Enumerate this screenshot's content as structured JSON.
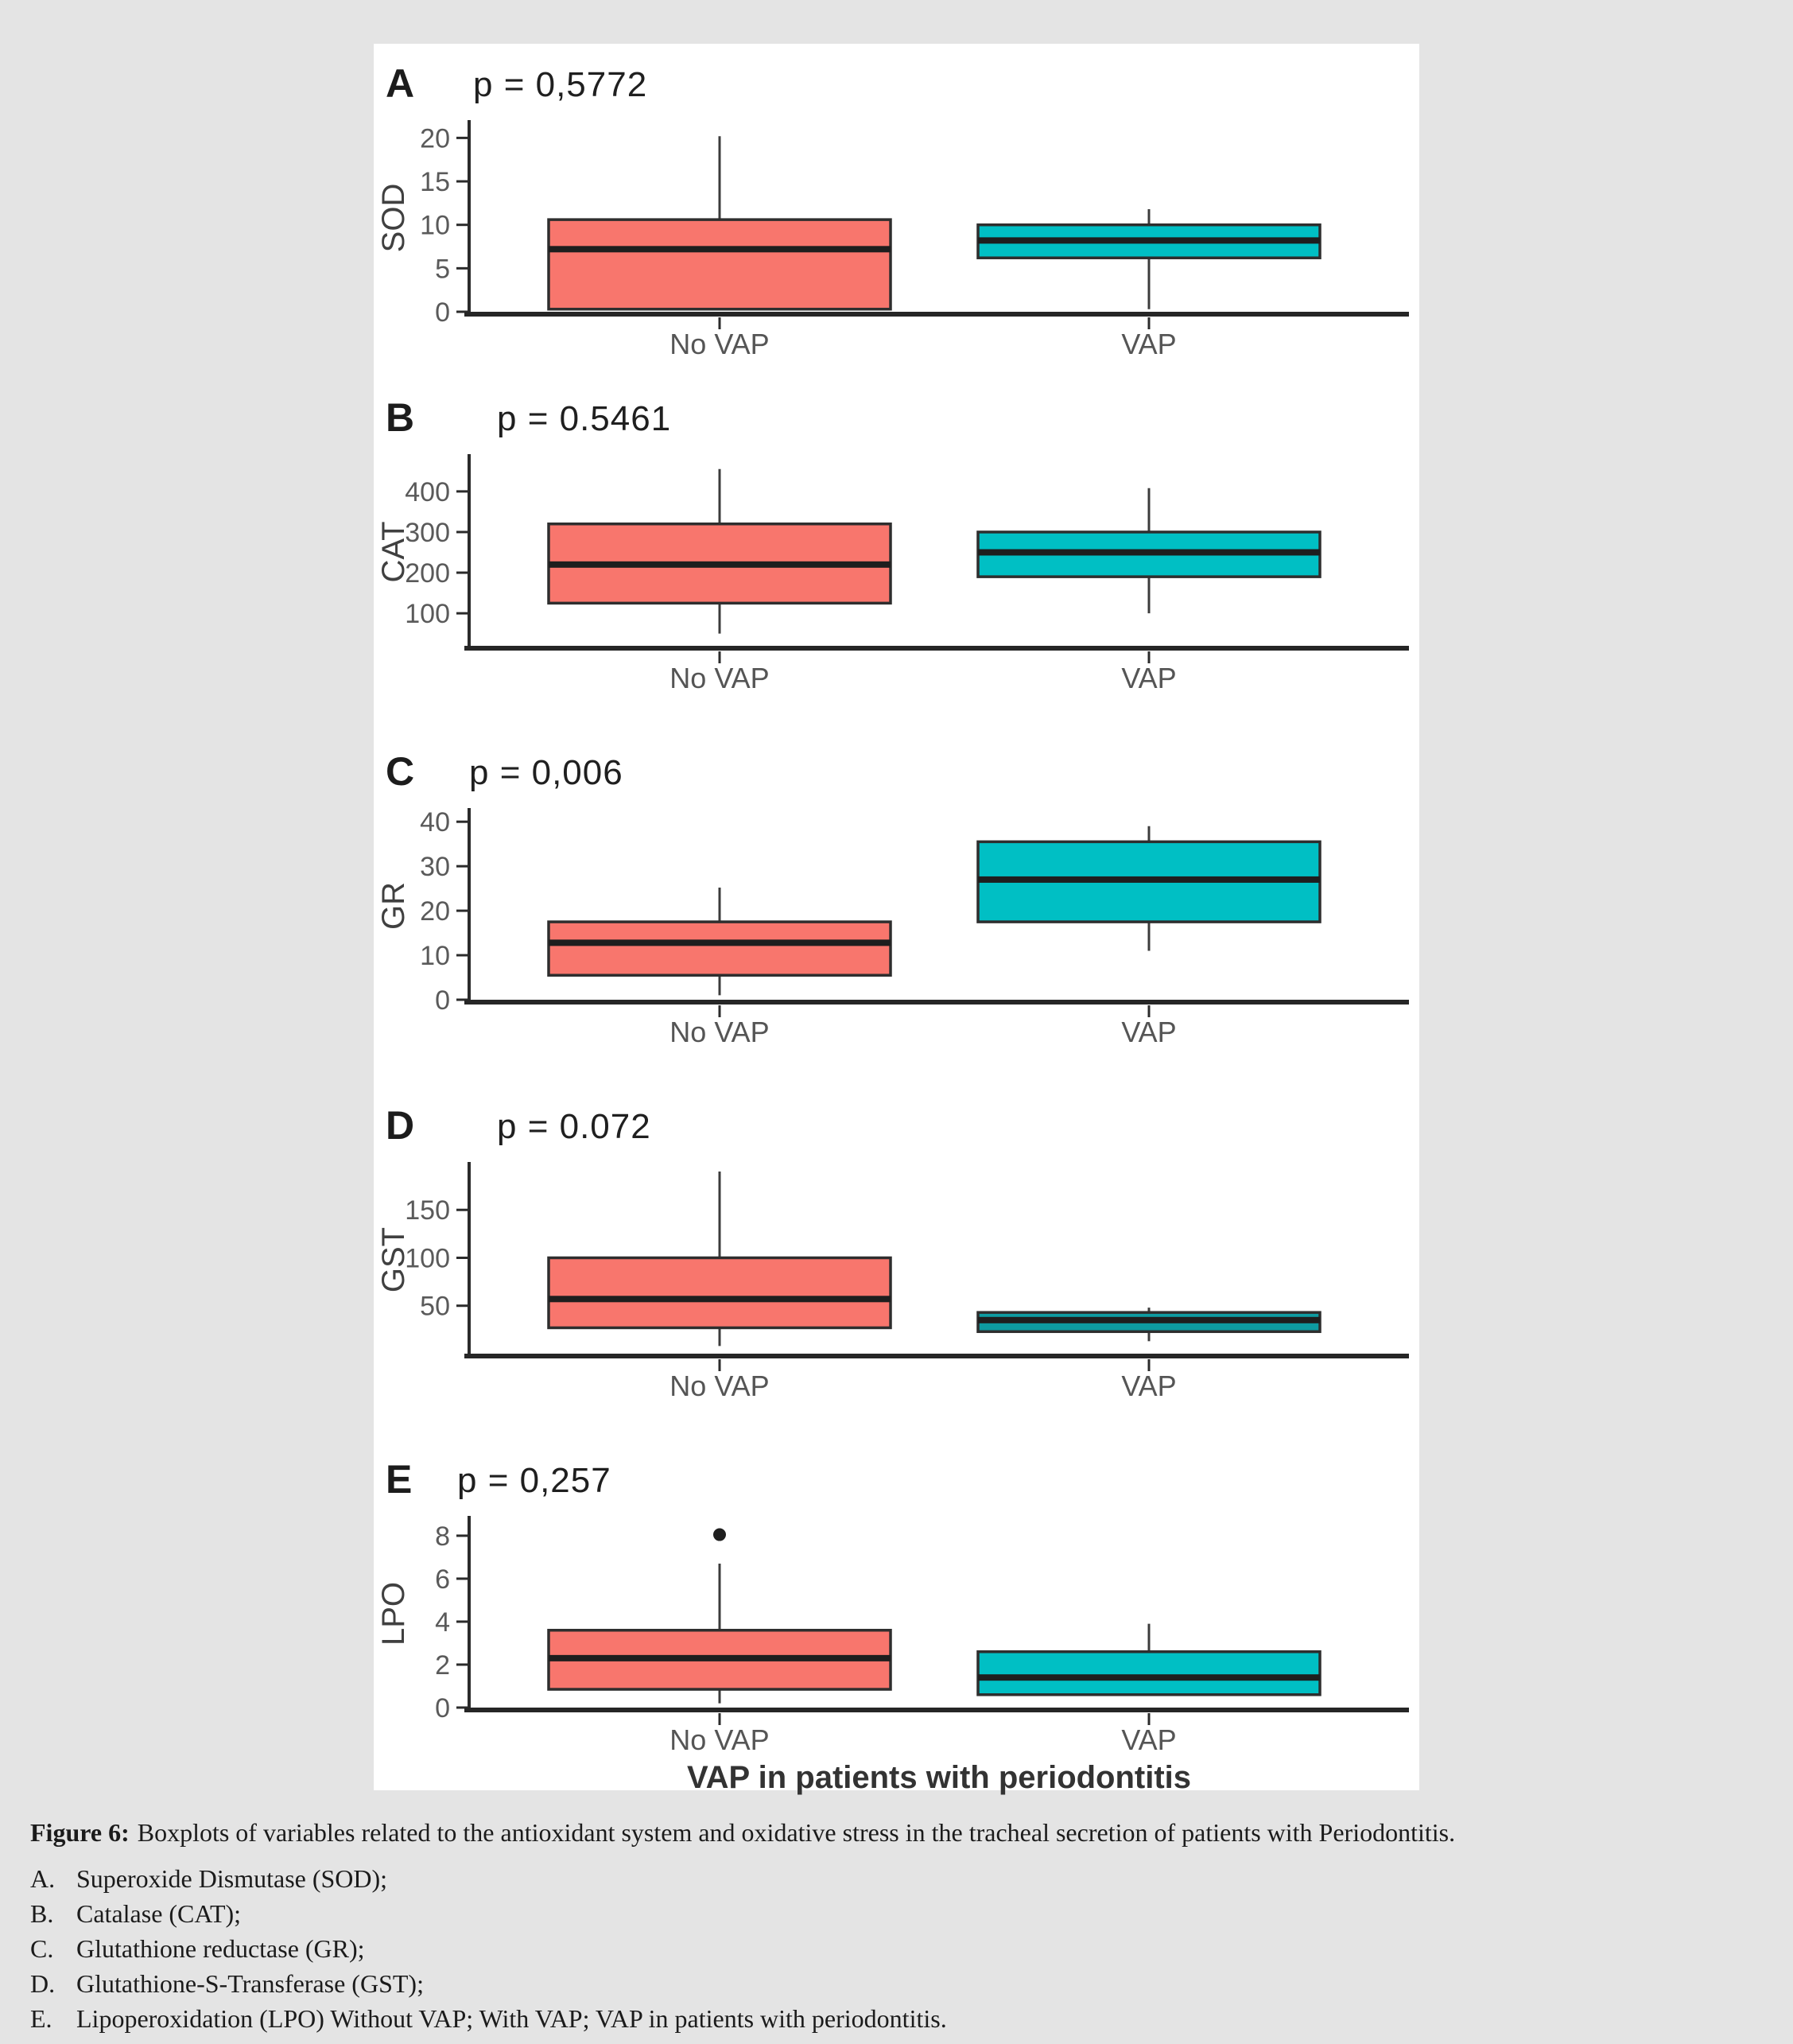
{
  "page": {
    "background": "#e4e4e4",
    "figure_background": "#ffffff"
  },
  "figure": {
    "caption_label": "Figure 6:",
    "caption_text": "Boxplots of variables related to the antioxidant system and oxidative stress in the tracheal secretion of patients with Periodontitis.",
    "legend_items": [
      {
        "letter": "A.",
        "text": "Superoxide Dismutase (SOD);"
      },
      {
        "letter": "B.",
        "text": "Catalase (CAT);"
      },
      {
        "letter": "C.",
        "text": "Glutathione reductase (GR);"
      },
      {
        "letter": "D.",
        "text": "Glutathione-S-Transferase (GST);"
      },
      {
        "letter": "E.",
        "text": "Lipoperoxidation (LPO) Without VAP; With VAP; VAP in patients with periodontitis."
      }
    ]
  },
  "colors": {
    "no_vap_fill": "#F8766D",
    "vap_fill": "#00BFC4",
    "vap_fill_dark": "#0E9BA1",
    "axis": "#2b2b2b",
    "x_axis": "#262626",
    "box_stroke": "#2e2e2e",
    "median": "#1e1e1e",
    "whisker": "#3c3c3c",
    "tick_label": "#5a5a5a",
    "category_label": "#555555",
    "y_label": "#404040",
    "x_title": "#333333"
  },
  "chart_data": [
    {
      "type": "boxplot",
      "panel": "A",
      "p_label": "p = 0,5772",
      "ylabel": "SOD",
      "xlabel": "",
      "categories": [
        "No VAP",
        "VAP"
      ],
      "yticks": [
        0,
        5,
        10,
        15,
        20
      ],
      "ylim": [
        0,
        21.5
      ],
      "series": [
        {
          "name": "No VAP",
          "color": "#F8766D",
          "whisker_low": 0.3,
          "q1": 0.3,
          "median": 7.2,
          "q3": 10.6,
          "whisker_high": 20.2,
          "outliers": []
        },
        {
          "name": "VAP",
          "color": "#00BFC4",
          "whisker_low": 0.3,
          "q1": 6.2,
          "median": 8.2,
          "q3": 10.0,
          "whisker_high": 11.8,
          "outliers": []
        }
      ]
    },
    {
      "type": "boxplot",
      "panel": "B",
      "p_label": "p = 0.5461",
      "ylabel": "CAT",
      "xlabel": "",
      "categories": [
        "No VAP",
        "VAP"
      ],
      "yticks": [
        100,
        200,
        300,
        400
      ],
      "ylim": [
        20,
        480
      ],
      "series": [
        {
          "name": "No VAP",
          "color": "#F8766D",
          "whisker_low": 50,
          "q1": 125,
          "median": 220,
          "q3": 320,
          "whisker_high": 455,
          "outliers": []
        },
        {
          "name": "VAP",
          "color": "#00BFC4",
          "whisker_low": 100,
          "q1": 190,
          "median": 250,
          "q3": 300,
          "whisker_high": 408,
          "outliers": []
        }
      ]
    },
    {
      "type": "boxplot",
      "panel": "C",
      "p_label": "p = 0,006",
      "ylabel": "GR",
      "xlabel": "",
      "categories": [
        "No VAP",
        "VAP"
      ],
      "yticks": [
        0,
        10,
        20,
        30,
        40
      ],
      "ylim": [
        0,
        42
      ],
      "series": [
        {
          "name": "No VAP",
          "color": "#F8766D",
          "whisker_low": 1.0,
          "q1": 5.5,
          "median": 12.8,
          "q3": 17.5,
          "whisker_high": 25.2,
          "outliers": []
        },
        {
          "name": "VAP",
          "color": "#00BFC4",
          "whisker_low": 11,
          "q1": 17.5,
          "median": 27,
          "q3": 35.5,
          "whisker_high": 39,
          "outliers": []
        }
      ]
    },
    {
      "type": "boxplot",
      "panel": "D",
      "p_label": "p = 0.072",
      "ylabel": "GST",
      "xlabel": "",
      "categories": [
        "No VAP",
        "VAP"
      ],
      "yticks": [
        50,
        100,
        150
      ],
      "ylim": [
        0,
        195
      ],
      "series": [
        {
          "name": "No VAP",
          "color": "#F8766D",
          "whisker_low": 8,
          "q1": 27,
          "median": 57,
          "q3": 100,
          "whisker_high": 190,
          "outliers": []
        },
        {
          "name": "VAP",
          "color": "#0E9BA1",
          "whisker_low": 13,
          "q1": 23,
          "median": 35,
          "q3": 43,
          "whisker_high": 48,
          "outliers": []
        }
      ]
    },
    {
      "type": "boxplot",
      "panel": "E",
      "p_label": "p = 0,257",
      "ylabel": "LPO",
      "xlabel": "VAP in patients with periodontitis",
      "categories": [
        "No VAP",
        "VAP"
      ],
      "yticks": [
        0,
        2,
        4,
        6,
        8
      ],
      "ylim": [
        0,
        8.7
      ],
      "series": [
        {
          "name": "No VAP",
          "color": "#F8766D",
          "whisker_low": 0.2,
          "q1": 0.85,
          "median": 2.3,
          "q3": 3.6,
          "whisker_high": 6.7,
          "outliers": [
            8.05
          ]
        },
        {
          "name": "VAP",
          "color": "#00BFC4",
          "whisker_low": 0.6,
          "q1": 0.6,
          "median": 1.4,
          "q3": 2.6,
          "whisker_high": 3.9,
          "outliers": []
        }
      ]
    }
  ]
}
